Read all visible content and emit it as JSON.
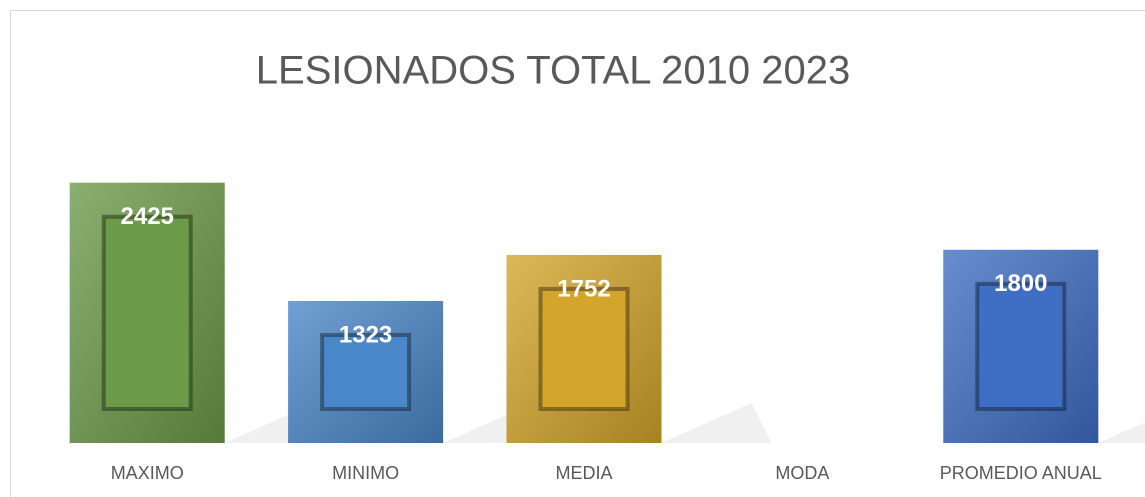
{
  "chart_data": {
    "type": "bar",
    "title": "LESIONADOS TOTAL 2010 2023",
    "categories": [
      "MAXIMO",
      "MINIMO",
      "MEDIA",
      "MODA",
      "PROMEDIO ANUAL"
    ],
    "values": [
      2425,
      1323,
      1752,
      null,
      1800
    ],
    "colors": [
      "#6b9a49",
      "#4a87c8",
      "#d4a52b",
      null,
      "#3f6fc4"
    ],
    "ylim": [
      0,
      3000
    ]
  }
}
